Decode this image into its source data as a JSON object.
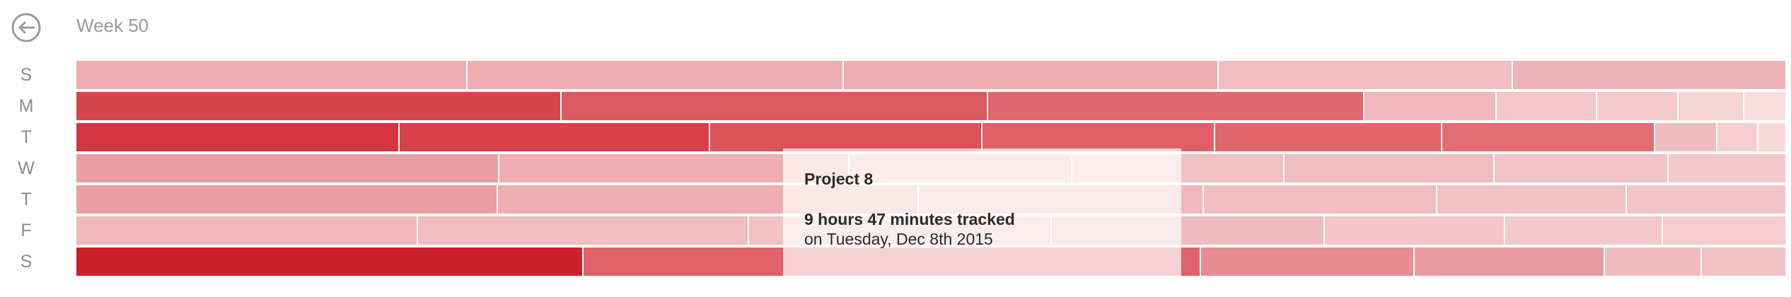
{
  "header": {
    "week_title": "Week 50",
    "back_icon": "back-arrow-circle-icon"
  },
  "days": [
    {
      "label": "S",
      "segments": [
        {
          "weight": 22.9,
          "color": "#eeadb1"
        },
        {
          "weight": 22.0,
          "color": "#eeadb1"
        },
        {
          "weight": 21.9,
          "color": "#eeadb1"
        },
        {
          "weight": 17.2,
          "color": "#f1bdc0"
        },
        {
          "weight": 16.0,
          "color": "#f0b4b8"
        }
      ]
    },
    {
      "label": "M",
      "segments": [
        {
          "weight": 28.4,
          "color": "#d6464d"
        },
        {
          "weight": 25.0,
          "color": "#db5a60"
        },
        {
          "weight": 22.0,
          "color": "#e0686e"
        },
        {
          "weight": 7.7,
          "color": "#f0b8bc"
        },
        {
          "weight": 5.8,
          "color": "#f3c6c9"
        },
        {
          "weight": 4.7,
          "color": "#f4cacd"
        },
        {
          "weight": 3.8,
          "color": "#f6d3d5"
        },
        {
          "weight": 2.4,
          "color": "#f8dde0"
        }
      ]
    },
    {
      "label": "T",
      "segments": [
        {
          "weight": 18.9,
          "color": "#d3363e"
        },
        {
          "weight": 18.2,
          "color": "#d84147"
        },
        {
          "weight": 15.9,
          "color": "#dc5258"
        },
        {
          "weight": 13.6,
          "color": "#df6167"
        },
        {
          "weight": 13.3,
          "color": "#e0666b"
        },
        {
          "weight": 12.4,
          "color": "#e26d72"
        },
        {
          "weight": 3.6,
          "color": "#f1bcbf"
        },
        {
          "weight": 2.3,
          "color": "#f5cdd0"
        },
        {
          "weight": 1.6,
          "color": "#f7d8da"
        }
      ]
    },
    {
      "label": "W",
      "segments": [
        {
          "weight": 24.6,
          "color": "#e99ea2"
        },
        {
          "weight": 20.4,
          "color": "#eeadb1"
        },
        {
          "weight": 12.9,
          "color": "#f1bcbf"
        },
        {
          "weight": 12.3,
          "color": "#f2c1c4"
        },
        {
          "weight": 12.2,
          "color": "#f1bdc0"
        },
        {
          "weight": 10.1,
          "color": "#f3c5c8"
        },
        {
          "weight": 6.8,
          "color": "#f4c9cc"
        }
      ]
    },
    {
      "label": "T",
      "segments": [
        {
          "weight": 24.6,
          "color": "#e99ea2"
        },
        {
          "weight": 24.6,
          "color": "#eeadb1"
        },
        {
          "weight": 16.6,
          "color": "#f0b8bb"
        },
        {
          "weight": 13.6,
          "color": "#f1bdc0"
        },
        {
          "weight": 11.0,
          "color": "#f2c1c4"
        },
        {
          "weight": 9.3,
          "color": "#f3c5c8"
        }
      ]
    },
    {
      "label": "F",
      "segments": [
        {
          "weight": 20.0,
          "color": "#f0b8bb"
        },
        {
          "weight": 19.4,
          "color": "#f1bdc0"
        },
        {
          "weight": 17.7,
          "color": "#f2c1c4"
        },
        {
          "weight": 16.0,
          "color": "#f1bcbf"
        },
        {
          "weight": 10.5,
          "color": "#f3c5c8"
        },
        {
          "weight": 9.2,
          "color": "#f4c9cc"
        },
        {
          "weight": 7.2,
          "color": "#f5cdd0"
        }
      ]
    },
    {
      "label": "S",
      "segments": [
        {
          "weight": 29.7,
          "color": "#cc2128"
        },
        {
          "weight": 36.2,
          "color": "#df6268"
        },
        {
          "weight": 12.5,
          "color": "#e78c91"
        },
        {
          "weight": 11.1,
          "color": "#e99ca0"
        },
        {
          "weight": 5.6,
          "color": "#f1bcbf"
        },
        {
          "weight": 4.9,
          "color": "#f2c1c4"
        }
      ]
    }
  ],
  "tooltip": {
    "project": "Project 8",
    "hours_text": "9 hours 47 minutes tracked",
    "date_text": "on Tuesday, Dec 8th 2015"
  }
}
